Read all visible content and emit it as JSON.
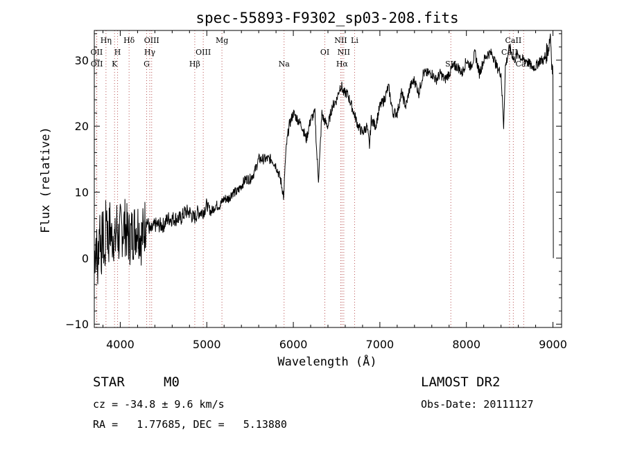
{
  "chart_data": {
    "type": "line",
    "title": "spec-55893-F9302_sp03-208.fits",
    "xlabel": "Wavelength (Å)",
    "ylabel": "Flux (relative)",
    "xlim": [
      3700,
      9100
    ],
    "ylim": [
      -10.5,
      34.5
    ],
    "xticks": [
      4000,
      5000,
      6000,
      7000,
      8000,
      9000
    ],
    "yticks": [
      -10,
      0,
      10,
      20,
      30
    ],
    "grid": false,
    "series": [
      {
        "x": [
          3700,
          3720,
          3740,
          3760,
          3780,
          3800,
          3820,
          3840,
          3860,
          3880,
          3900,
          3920,
          3940,
          3960,
          3980,
          4000,
          4050,
          4100,
          4150,
          4200,
          4250,
          4300,
          4350,
          4400,
          4450,
          4500,
          4550,
          4600,
          4650,
          4700,
          4750,
          4800,
          4850,
          4900,
          4950,
          5000,
          5050,
          5100,
          5150,
          5200,
          5250,
          5300,
          5350,
          5400,
          5450,
          5500,
          5550,
          5600,
          5650,
          5700,
          5750,
          5800,
          5850,
          5880,
          5890,
          5900,
          5920,
          5950,
          6000,
          6050,
          6100,
          6150,
          6200,
          6250,
          6270,
          6290,
          6300,
          6330,
          6350,
          6400,
          6450,
          6500,
          6520,
          6540,
          6560,
          6580,
          6600,
          6620,
          6650,
          6700,
          6750,
          6800,
          6850,
          6880,
          6900,
          6950,
          7000,
          7050,
          7100,
          7150,
          7200,
          7250,
          7300,
          7350,
          7400,
          7450,
          7500,
          7550,
          7600,
          7650,
          7700,
          7750,
          7800,
          7850,
          7900,
          7950,
          8000,
          8050,
          8100,
          8150,
          8200,
          8250,
          8300,
          8350,
          8400,
          8430,
          8450,
          8500,
          8550,
          8600,
          8650,
          8700,
          8750,
          8800,
          8850,
          8900,
          8950,
          8970,
          8990,
          9000,
          9005
        ],
        "y": [
          0,
          3,
          -2,
          6,
          1,
          4,
          -1,
          8,
          2,
          5,
          3,
          4,
          2,
          5,
          3,
          4,
          5,
          3,
          4,
          5,
          3,
          6,
          4,
          5,
          5,
          5,
          6,
          6,
          6,
          6,
          7,
          7,
          6,
          7,
          7,
          8,
          7,
          8,
          8,
          9,
          9,
          10,
          10,
          11,
          12,
          12,
          13,
          15,
          15,
          15,
          15,
          14,
          12,
          10,
          9,
          13,
          17,
          20,
          22,
          21,
          20,
          18,
          21,
          22,
          16,
          12,
          14,
          22,
          21,
          20,
          23,
          24,
          25,
          26,
          26,
          25,
          25,
          25,
          24,
          22,
          20,
          19,
          20,
          17,
          21,
          20,
          23,
          24,
          26,
          22,
          22,
          25,
          23,
          26,
          27,
          25,
          28,
          28,
          28,
          27,
          28,
          27,
          28,
          29,
          29,
          28,
          30,
          29,
          31,
          28,
          30,
          31,
          31,
          29,
          28,
          20,
          29,
          32,
          30,
          31,
          30,
          30,
          29,
          29,
          30,
          30,
          32,
          34,
          29,
          28,
          0
        ]
      }
    ],
    "line_markers": [
      {
        "label": "OII",
        "wavelength": 3727,
        "row": 1
      },
      {
        "label": "OII",
        "wavelength": 3729,
        "row": 2
      },
      {
        "label": "Hη",
        "wavelength": 3835,
        "row": 0
      },
      {
        "label": "H",
        "wavelength": 3969,
        "row": 1
      },
      {
        "label": "K",
        "wavelength": 3934,
        "row": 2
      },
      {
        "label": "Hδ",
        "wavelength": 4102,
        "row": 0
      },
      {
        "label": "OIII",
        "wavelength": 4363,
        "row": 0
      },
      {
        "label": "Hγ",
        "wavelength": 4341,
        "row": 1
      },
      {
        "label": "G",
        "wavelength": 4305,
        "row": 2
      },
      {
        "label": "Hβ",
        "wavelength": 4861,
        "row": 2
      },
      {
        "label": "OIII",
        "wavelength": 4959,
        "row": 1
      },
      {
        "label": "Mg",
        "wavelength": 5175,
        "row": 0
      },
      {
        "label": "Na",
        "wavelength": 5893,
        "row": 2
      },
      {
        "label": "OI",
        "wavelength": 6364,
        "row": 1
      },
      {
        "label": "NII",
        "wavelength": 6548,
        "row": 0
      },
      {
        "label": "NII",
        "wavelength": 6583,
        "row": 1
      },
      {
        "label": "Hα",
        "wavelength": 6563,
        "row": 2
      },
      {
        "label": "Li",
        "wavelength": 6708,
        "row": 0
      },
      {
        "label": "SII",
        "wavelength": 7820,
        "row": 2
      },
      {
        "label": "CaII",
        "wavelength": 8498,
        "row": 1
      },
      {
        "label": "CaII",
        "wavelength": 8542,
        "row": 0
      },
      {
        "label": "CaII",
        "wavelength": 8662,
        "row": 2
      }
    ]
  },
  "info": {
    "object_type": "STAR",
    "subclass": "M0",
    "survey": "LAMOST DR2",
    "redshift_line": "cz = -34.8 ± 9.6 km/s",
    "obs_date": "Obs-Date: 20111127",
    "coords": "RA =   1.77685, DEC =   5.13880"
  }
}
